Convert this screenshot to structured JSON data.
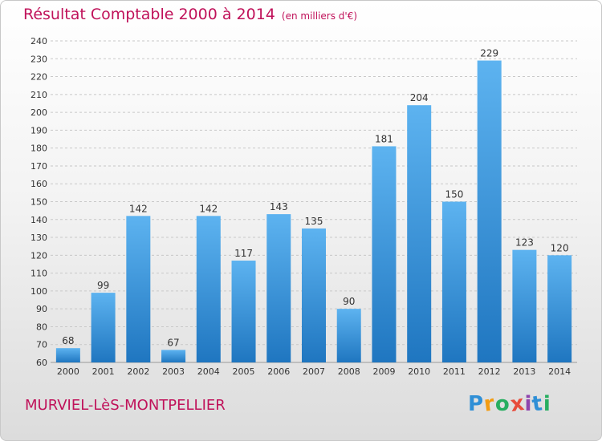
{
  "header": {
    "title": "Résultat Comptable 2000 à 2014",
    "unit": "(en milliers d'€)"
  },
  "footer": {
    "commune": "MURVIEL-LèS-MONTPELLIER",
    "logo": {
      "letters": [
        "P",
        "r",
        "o",
        "x",
        "i",
        "t",
        "i"
      ],
      "colors": [
        "#2f8fd6",
        "#f39c12",
        "#27ae60",
        "#e74c3c",
        "#8e44ad",
        "#2f8fd6",
        "#27ae60"
      ]
    }
  },
  "colors": {
    "accent": "#c0125a",
    "bar_top": "#5db3f0",
    "bar_bottom": "#1f76c0",
    "grid": "#c8c8c8"
  },
  "chart_data": {
    "type": "bar",
    "categories": [
      "2000",
      "2001",
      "2002",
      "2003",
      "2004",
      "2005",
      "2006",
      "2007",
      "2008",
      "2009",
      "2010",
      "2011",
      "2012",
      "2013",
      "2014"
    ],
    "values": [
      68,
      99,
      142,
      67,
      142,
      117,
      143,
      135,
      90,
      181,
      204,
      150,
      229,
      123,
      120
    ],
    "yticks": [
      60,
      70,
      80,
      90,
      100,
      110,
      120,
      130,
      140,
      150,
      160,
      170,
      180,
      190,
      200,
      210,
      220,
      230,
      240
    ],
    "ylim": [
      60,
      240
    ],
    "grid": true
  }
}
